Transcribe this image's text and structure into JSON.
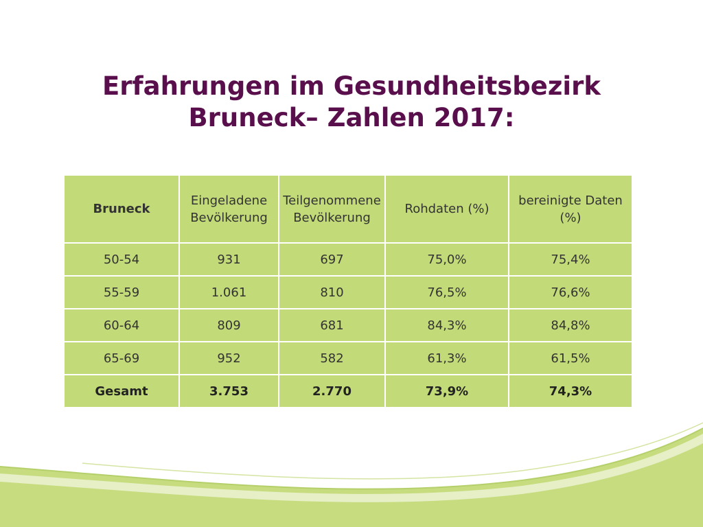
{
  "title": {
    "line1": "Erfahrungen im Gesundheitsbezirk",
    "line2": "Bruneck– Zahlen 2017:"
  },
  "table": {
    "headers": [
      "Bruneck",
      "Eingeladene Bevölkerung",
      "Teilgenommene Bevölkerung",
      "Rohdaten (%)",
      "bereinigte Daten (%)"
    ],
    "rows": [
      [
        "50-54",
        "931",
        "697",
        "75,0%",
        "75,4%"
      ],
      [
        "55-59",
        "1.061",
        "810",
        "76,5%",
        "76,6%"
      ],
      [
        "60-64",
        "809",
        "681",
        "84,3%",
        "84,8%"
      ],
      [
        "65-69",
        "952",
        "582",
        "61,3%",
        "61,5%"
      ]
    ],
    "total": [
      "Gesamt",
      "3.753",
      "2.770",
      "73,9%",
      "74,3%"
    ]
  },
  "colors": {
    "title": "#5a0f4d",
    "cell_background": "#c2da77",
    "swoosh_green": "#c6dc7e"
  }
}
